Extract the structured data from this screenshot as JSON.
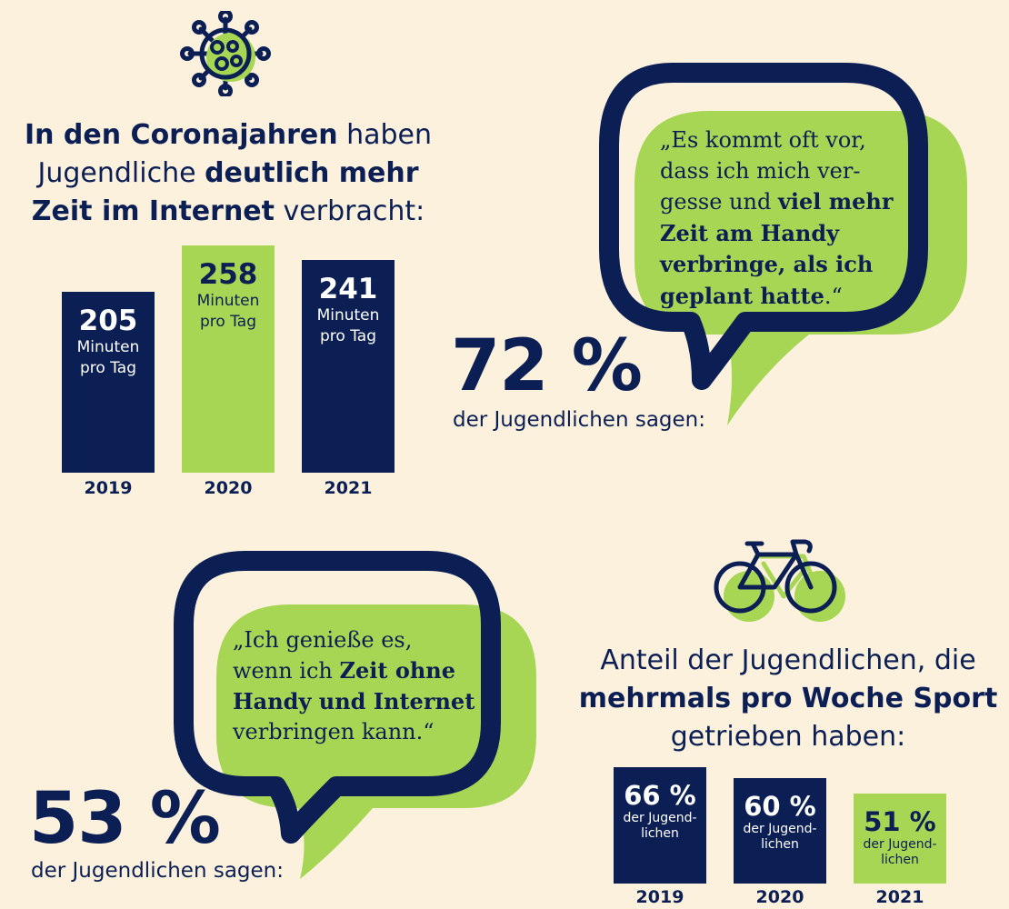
{
  "colors": {
    "navy": "#0b1f55",
    "green": "#a6d653",
    "background": "#fcf1dd"
  },
  "internet": {
    "icon": "virus-icon",
    "heading": [
      [
        {
          "t": "In den Coronajahren",
          "b": true
        },
        {
          "t": " haben",
          "b": false
        }
      ],
      [
        {
          "t": "Jugendliche ",
          "b": false
        },
        {
          "t": "deutlich mehr",
          "b": true
        }
      ],
      [
        {
          "t": "Zeit im Internet",
          "b": true
        },
        {
          "t": " verbracht:",
          "b": false
        }
      ]
    ]
  },
  "quote1": {
    "percent": "72 %",
    "say": "der Jugendlichen sagen:",
    "lines": [
      [
        {
          "t": "„Es kommt oft vor,",
          "b": false
        }
      ],
      [
        {
          "t": "dass ich mich ver-",
          "b": false
        }
      ],
      [
        {
          "t": "gesse und ",
          "b": false
        },
        {
          "t": "viel mehr",
          "b": true
        }
      ],
      [
        {
          "t": "Zeit am Handy",
          "b": true
        }
      ],
      [
        {
          "t": "verbringe, als ich",
          "b": true
        }
      ],
      [
        {
          "t": "geplant hatte",
          "b": true
        },
        {
          "t": ".“",
          "b": false
        }
      ]
    ]
  },
  "quote2": {
    "percent": "53 %",
    "say": "der Jugendlichen sagen:",
    "lines": [
      [
        {
          "t": "„Ich genieße es,",
          "b": false
        }
      ],
      [
        {
          "t": "wenn ich ",
          "b": false
        },
        {
          "t": "Zeit ohne",
          "b": true
        }
      ],
      [
        {
          "t": "Handy und Internet",
          "b": true
        }
      ],
      [
        {
          "t": "verbringen kann.“",
          "b": false
        }
      ]
    ]
  },
  "sport": {
    "icon": "bicycle-icon",
    "heading": [
      [
        {
          "t": "Anteil der Jugendlichen, die",
          "b": false
        }
      ],
      [
        {
          "t": "mehrmals pro Woche Sport",
          "b": true
        }
      ],
      [
        {
          "t": "getrieben haben:",
          "b": false
        }
      ]
    ]
  },
  "chart_data": [
    {
      "type": "bar",
      "categories": [
        "2019",
        "2020",
        "2021"
      ],
      "values": [
        205,
        258,
        241
      ],
      "value_labels": [
        "205",
        "258",
        "241"
      ],
      "unit": "Minuten pro Tag",
      "unit_lines": [
        "Minuten",
        "pro Tag"
      ],
      "bar_colors": [
        "#0b1f55",
        "#a6d653",
        "#0b1f55"
      ]
    },
    {
      "type": "bar",
      "categories": [
        "2019",
        "2020",
        "2021"
      ],
      "values": [
        66,
        60,
        51
      ],
      "value_labels": [
        "66 %",
        "60 %",
        "51 %"
      ],
      "unit": "der Jugendlichen",
      "unit_lines": [
        "der Jugend-",
        "lichen"
      ],
      "bar_colors": [
        "#0b1f55",
        "#0b1f55",
        "#a6d653"
      ]
    }
  ]
}
